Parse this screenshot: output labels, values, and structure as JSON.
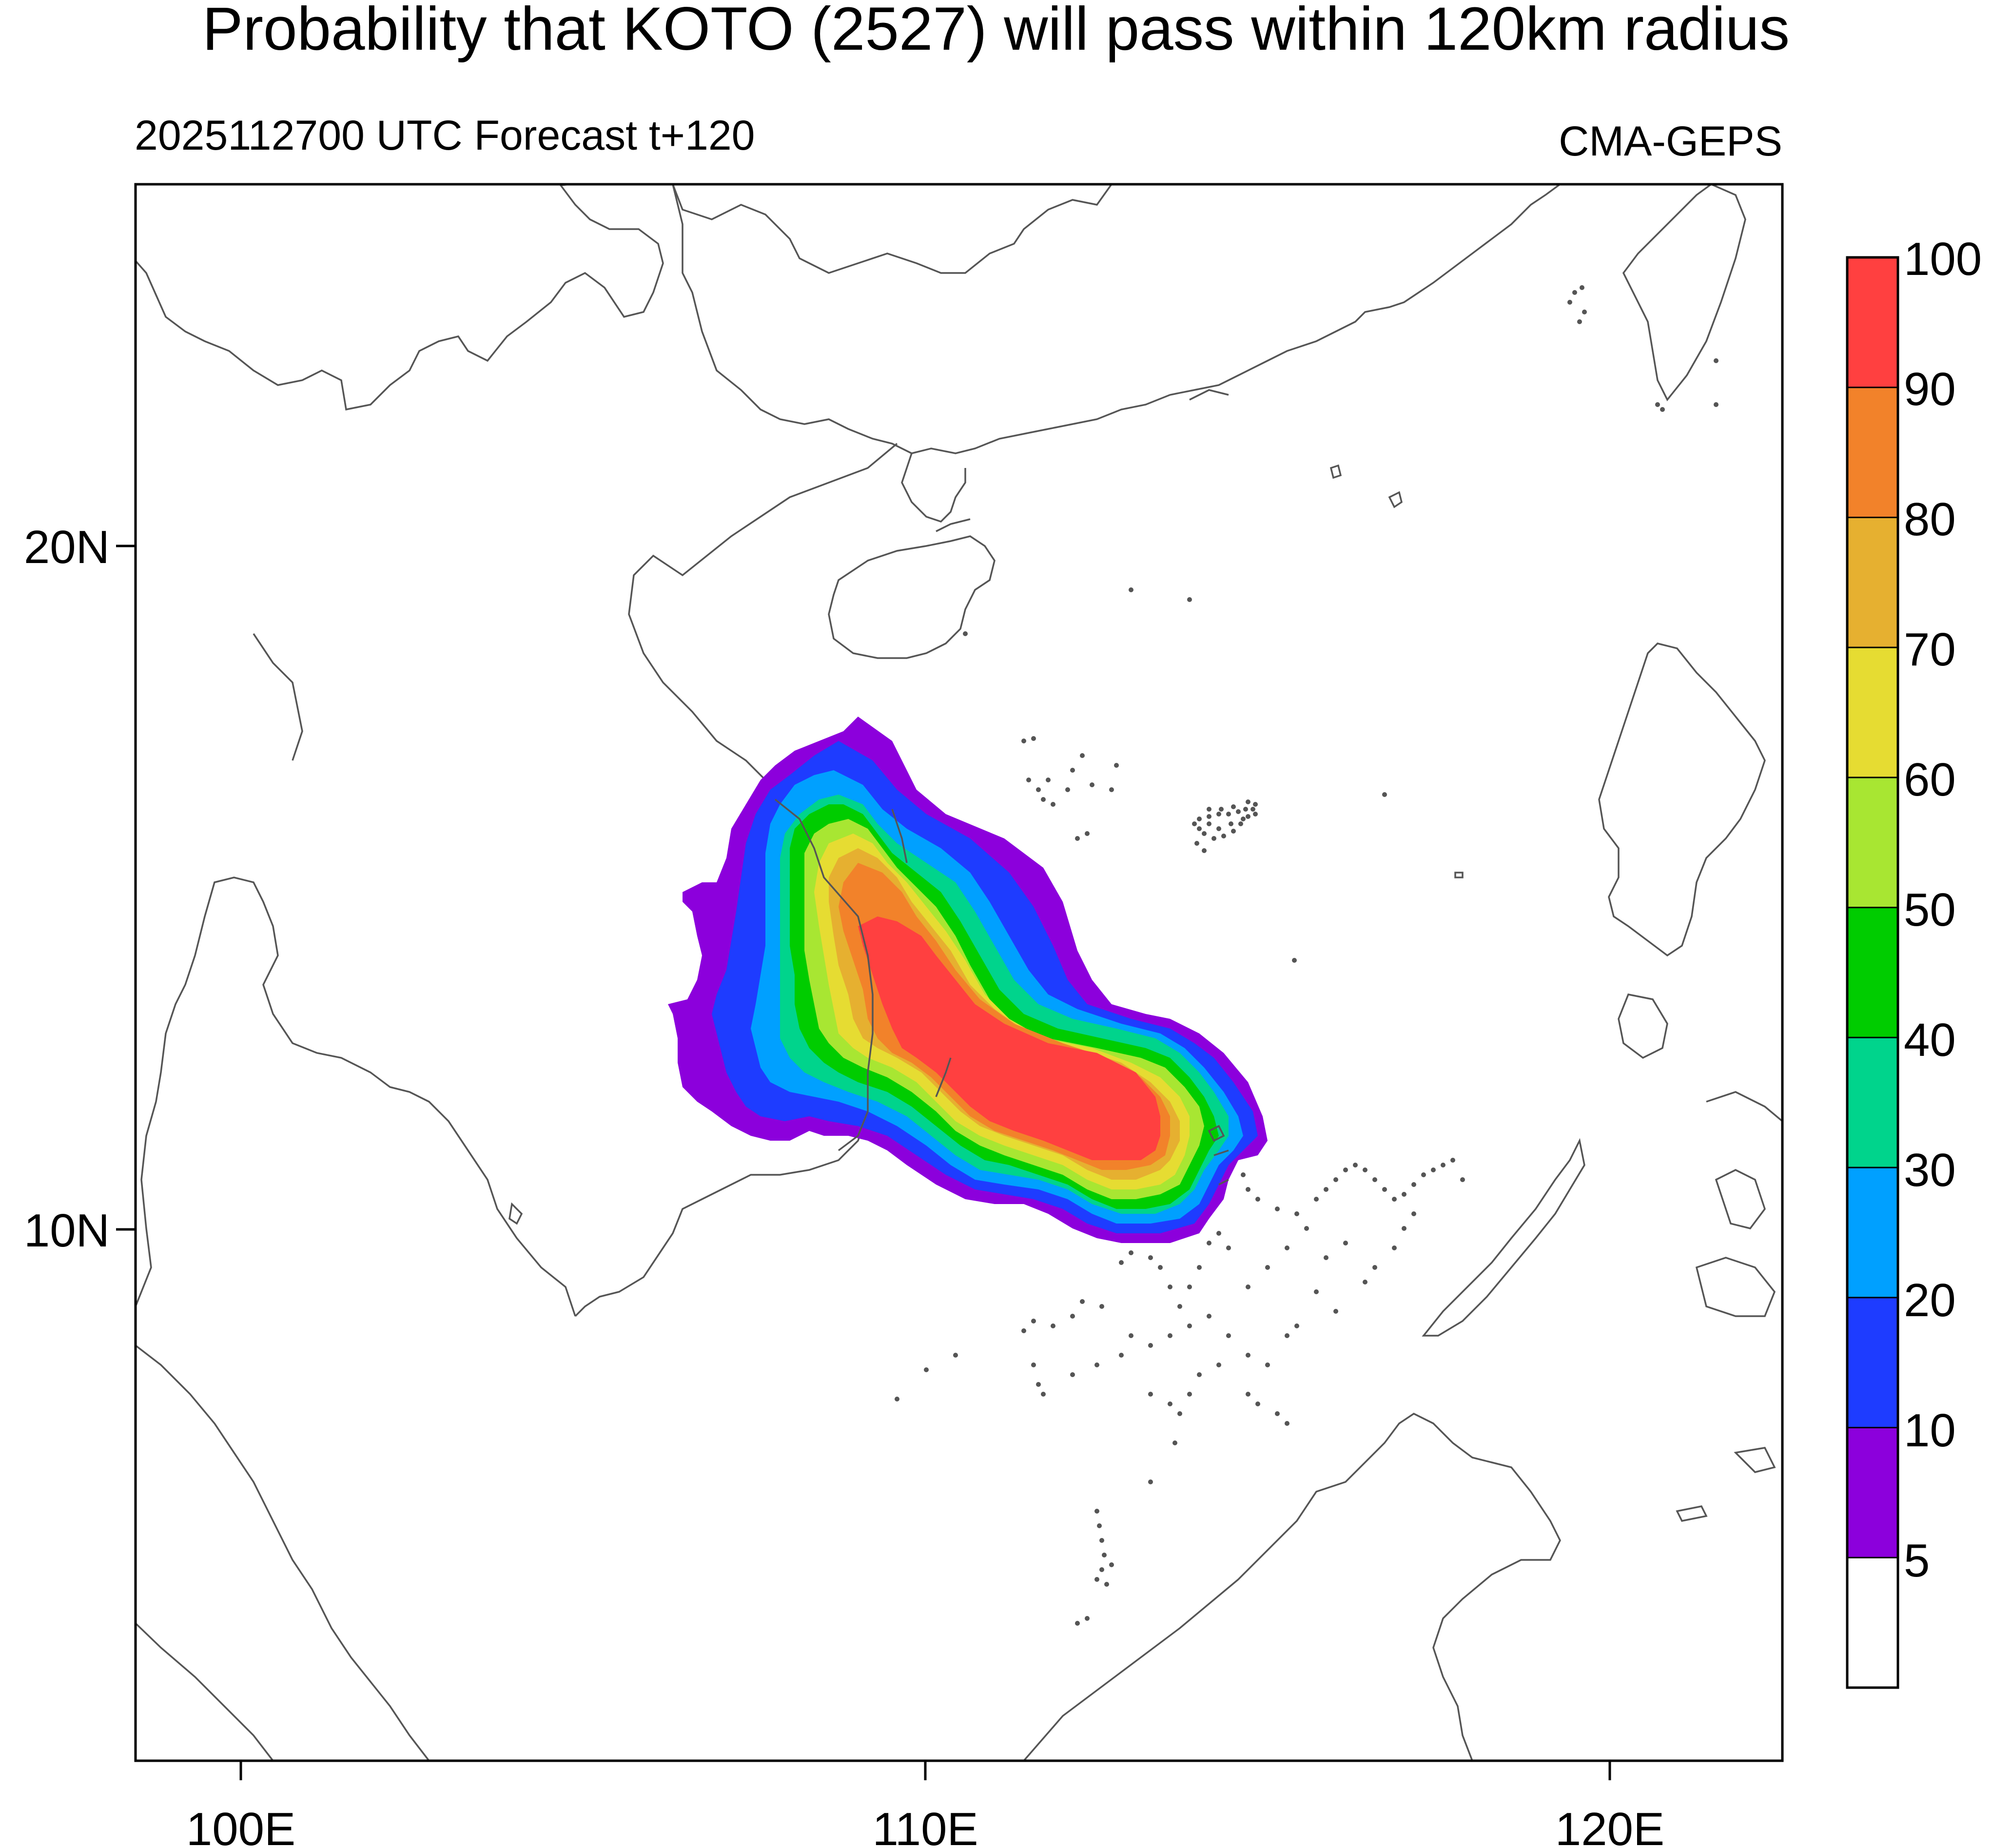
{
  "title": "Probability that KOTO (2527) will pass within 120km radius",
  "subtitle_left": "2025112700 UTC Forecast t+120",
  "subtitle_right": "CMA-GEPS",
  "axes": {
    "lat_labels": [
      "20N",
      "10N"
    ],
    "lon_labels": [
      "100E",
      "110E",
      "120E"
    ]
  },
  "legend": {
    "levels": [
      "100",
      "90",
      "80",
      "70",
      "60",
      "50",
      "40",
      "30",
      "20",
      "10",
      "5"
    ],
    "colors": [
      "#ff4040",
      "#f2822a",
      "#e6b030",
      "#e6dc32",
      "#a8e632",
      "#00cc00",
      "#00d48c",
      "#00a0ff",
      "#1e3cff",
      "#8c00dc",
      "#ffffff"
    ]
  }
}
